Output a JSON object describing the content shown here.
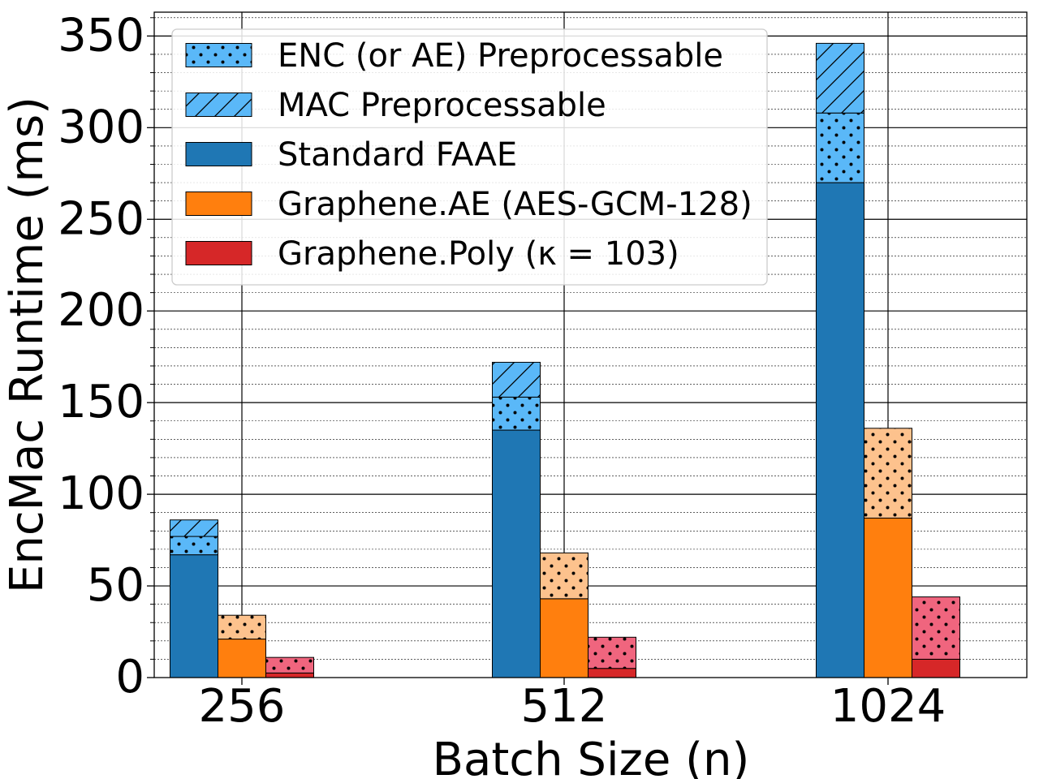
{
  "chart_data": {
    "type": "bar",
    "stacked": true,
    "xlabel": "Batch Size (n)",
    "ylabel": "EncMac Runtime (ms)",
    "ylim": [
      0,
      363
    ],
    "yticks": [
      0,
      50,
      100,
      150,
      200,
      250,
      300,
      350
    ],
    "categories": [
      "256",
      "512",
      "1024"
    ],
    "grid": "major and minor",
    "legend_position": "top-left",
    "colors": {
      "standard": "#1f77b4",
      "standard_pre": "#5ab8f8",
      "ae": "#ff7f0e",
      "ae_pre": "#fdc28d",
      "poly": "#d62728",
      "poly_pre": "#f0657e"
    },
    "series": [
      {
        "name": "Standard FAAE",
        "base": [
          67,
          135,
          270
        ],
        "enc_preprocessable": [
          10,
          18,
          38
        ],
        "mac_preprocessable": [
          9,
          19,
          38
        ]
      },
      {
        "name": "Graphene.AE (AES-GCM-128)",
        "base": [
          21,
          43,
          87
        ],
        "enc_preprocessable": [
          13,
          25,
          49
        ],
        "mac_preprocessable": [
          0,
          0,
          0
        ]
      },
      {
        "name": "Graphene.Poly (κ = 103)",
        "base": [
          2.5,
          5,
          10
        ],
        "enc_preprocessable": [
          8.5,
          17,
          34
        ],
        "mac_preprocessable": [
          0,
          0,
          0
        ]
      }
    ],
    "legend": [
      {
        "label": "ENC (or AE) Preprocessable",
        "pattern": "dots",
        "color": "#5ab8f8"
      },
      {
        "label": "MAC Preprocessable",
        "pattern": "hatch",
        "color": "#5ab8f8"
      },
      {
        "label": "Standard FAAE",
        "pattern": "solid",
        "color": "#1f77b4"
      },
      {
        "label": "Graphene.AE (AES-GCM-128)",
        "pattern": "solid",
        "color": "#ff7f0e"
      },
      {
        "label": "Graphene.Poly (κ = 103)",
        "pattern": "solid",
        "color": "#d62728"
      }
    ]
  }
}
